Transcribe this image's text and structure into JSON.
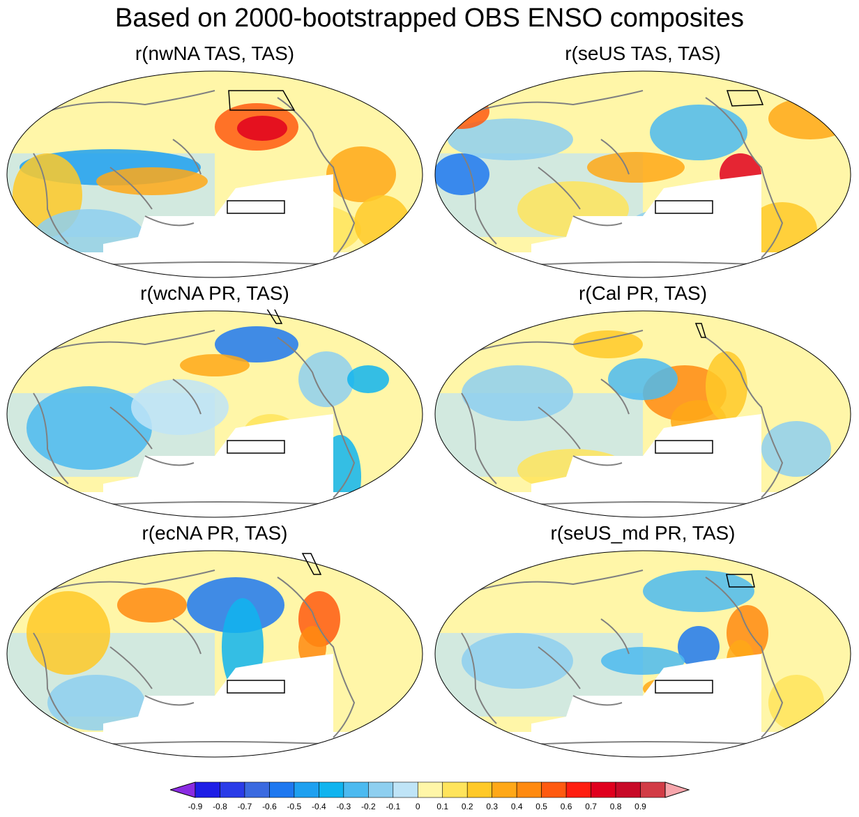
{
  "title": "Based on 2000-bootstrapped OBS ENSO composites",
  "panels": [
    {
      "title": "r(nwNA TAS, TAS)"
    },
    {
      "title": "r(seUS TAS, TAS)"
    },
    {
      "title": "r(wcNA PR, TAS)"
    },
    {
      "title": "r(Cal PR, TAS)"
    },
    {
      "title": "r(ecNA PR, TAS)"
    },
    {
      "title": "r(seUS_md PR, TAS)"
    }
  ],
  "colorbar": {
    "labels": [
      "-0.9",
      "-0.8",
      "-0.7",
      "-0.6",
      "-0.5",
      "-0.4",
      "-0.3",
      "-0.2",
      "-0.1",
      "0",
      "0.1",
      "0.2",
      "0.3",
      "0.4",
      "0.5",
      "0.6",
      "0.7",
      "0.8",
      "0.9"
    ],
    "colors": [
      "#8a2be2",
      "#1e1ee6",
      "#2a3ce8",
      "#3b6ae0",
      "#1e78f0",
      "#1ea0f0",
      "#10b4ef",
      "#4cbaf0",
      "#8ecff0",
      "#bfe4f7",
      "#fff6a8",
      "#ffe45c",
      "#ffc928",
      "#ffa818",
      "#ff8a10",
      "#ff5a10",
      "#ff1e10",
      "#e0001e",
      "#c80a28",
      "#d23c46",
      "#f7a6ac"
    ]
  }
}
